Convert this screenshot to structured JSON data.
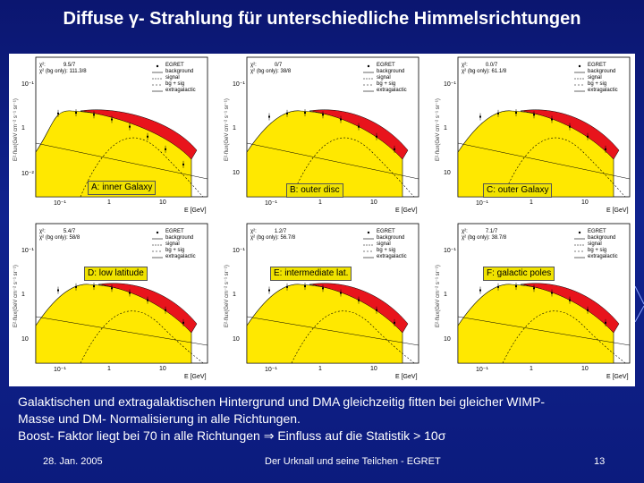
{
  "slide": {
    "title": "Diffuse γ- Strahlung für unterschiedliche Himmelsrichtungen",
    "caption_lines": [
      "Galaktischen und extragalaktischen Hintergrund und DMA gleichzeitig fitten bei gleicher WIMP-",
      "Masse und DM- Normalisierung in alle Richtungen.",
      "Boost- Faktor liegt bei 70 in alle Richtungen ⇒ Einfluss auf die Statistik  > 10σ"
    ],
    "footer_date": "28. Jan. 2005",
    "footer_center": "Der Urknall und seine Teilchen - EGRET",
    "page_number": "13"
  },
  "legend": [
    "EGRET",
    "background",
    "signal",
    "bg + sig",
    "extragalactic"
  ],
  "axis": {
    "ylabel": "E²·flux(GeV cm⁻² s⁻¹ sr⁻¹)",
    "xticks": [
      "10⁻¹",
      "1",
      "10"
    ]
  },
  "panels": [
    {
      "label": "A: inner Galaxy",
      "chi1": "χ²:            9.5/7",
      "chi2": "χ² (bg only): 111.3/8",
      "xunit": "E [GeV]",
      "yticks": [
        "10⁻¹",
        "1",
        "10⁻²"
      ]
    },
    {
      "label": "B: outer disc",
      "chi1": "χ²:            0/7",
      "chi2": "χ² (bg only): 38/8",
      "xunit": "E [GeV]",
      "yticks": [
        "10⁻¹",
        "1",
        "10"
      ]
    },
    {
      "label": "C: outer Galaxy",
      "chi1": "χ²:            0.0/7",
      "chi2": "χ² (bg only): 61.1/8",
      "xunit": "E [GeV]",
      "yticks": [
        "10⁻¹",
        "1",
        "10"
      ]
    },
    {
      "label": "D: low latitude",
      "chi1": "χ²:            5.4/7",
      "chi2": "χ² (bg only): 58/8",
      "xunit": "E [GeV]",
      "yticks": [
        "10⁻¹",
        "1",
        "10"
      ]
    },
    {
      "label": "E: intermediate lat.",
      "chi1": "χ²:            1.2/7",
      "chi2": "χ² (bg only): 56.7/8",
      "xunit": "E [GeV]",
      "yticks": [
        "10⁻¹",
        "1",
        "10"
      ]
    },
    {
      "label": "F: galactic poles",
      "chi1": "χ²:            7.1/7",
      "chi2": "χ² (bg only): 38.7/8",
      "xunit": "E [GeV]",
      "yticks": [
        "10⁻¹",
        "1",
        "10"
      ]
    }
  ]
}
